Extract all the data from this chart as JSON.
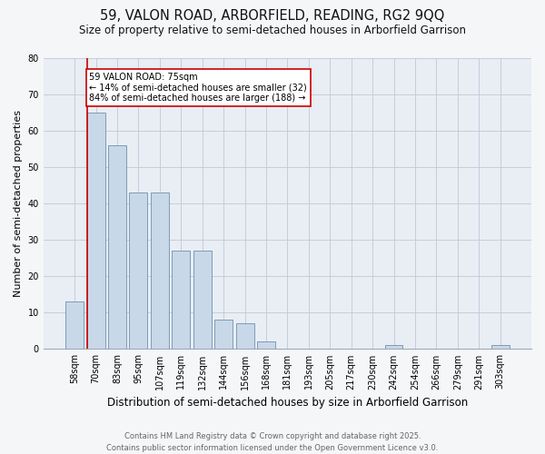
{
  "title": "59, VALON ROAD, ARBORFIELD, READING, RG2 9QQ",
  "subtitle": "Size of property relative to semi-detached houses in Arborfield Garrison",
  "xlabel": "Distribution of semi-detached houses by size in Arborfield Garrison",
  "ylabel": "Number of semi-detached properties",
  "categories": [
    "58sqm",
    "70sqm",
    "83sqm",
    "95sqm",
    "107sqm",
    "119sqm",
    "132sqm",
    "144sqm",
    "156sqm",
    "168sqm",
    "181sqm",
    "193sqm",
    "205sqm",
    "217sqm",
    "230sqm",
    "242sqm",
    "254sqm",
    "266sqm",
    "279sqm",
    "291sqm",
    "303sqm"
  ],
  "values": [
    13,
    65,
    56,
    43,
    43,
    27,
    27,
    8,
    7,
    2,
    0,
    0,
    0,
    0,
    0,
    1,
    0,
    0,
    0,
    0,
    1
  ],
  "bar_color": "#c8d8e8",
  "bar_edge_color": "#7090b0",
  "property_label": "59 VALON ROAD: 75sqm",
  "pct_smaller": 14,
  "count_smaller": 32,
  "pct_larger": 84,
  "count_larger": 188,
  "annotation_box_color": "#ffffff",
  "annotation_border_color": "#cc0000",
  "red_line_color": "#cc0000",
  "ylim": [
    0,
    80
  ],
  "yticks": [
    0,
    10,
    20,
    30,
    40,
    50,
    60,
    70,
    80
  ],
  "grid_color": "#c0c8d8",
  "background_color": "#e8eef4",
  "fig_background_color": "#f4f6f8",
  "footer": "Contains HM Land Registry data © Crown copyright and database right 2025.\nContains public sector information licensed under the Open Government Licence v3.0.",
  "title_fontsize": 10.5,
  "subtitle_fontsize": 8.5,
  "xlabel_fontsize": 8.5,
  "ylabel_fontsize": 8,
  "tick_fontsize": 7,
  "footer_fontsize": 6,
  "annotation_fontsize": 7
}
